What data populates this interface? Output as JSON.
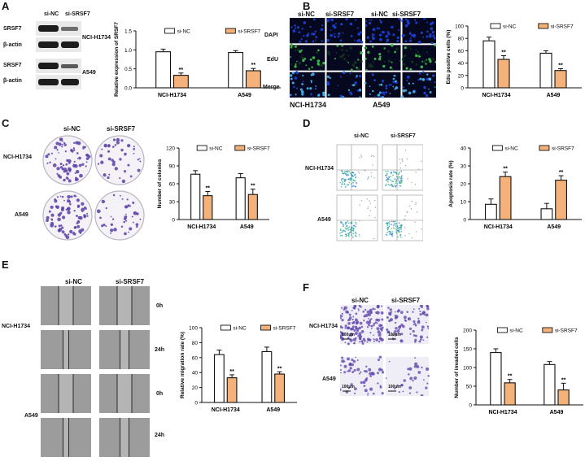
{
  "figure": {
    "colors": {
      "sirna_nc": "#ffffff",
      "si_srsf7": "#f4b27a",
      "outline": "#111111",
      "crystal_violet": "#5a3fa8",
      "dapi_blue": "#1a3cc8",
      "edu_green": "#39b54a",
      "scratch_gray": "#9c9c9c"
    },
    "panels": {
      "A": {
        "label": "A",
        "blot_cols": [
          "si-NC",
          "si-SRSF7"
        ],
        "blot_rows": [
          "SRSF7",
          "β-actin",
          "SRSF7",
          "β-actin"
        ],
        "cell_lines": [
          "NCI-H1734",
          "A549"
        ]
      },
      "B": {
        "label": "B",
        "cols": [
          "si-NC",
          "si-SRSF7",
          "si-NC",
          "si-SRSF7"
        ],
        "rows": [
          "DAPI",
          "EdU",
          "Merge"
        ],
        "cell_lines": [
          "NCI-H1734",
          "A549"
        ]
      },
      "C": {
        "label": "C",
        "cols": [
          "si-NC",
          "si-SRSF7"
        ],
        "cell_lines": [
          "NCI-H1734",
          "A549"
        ]
      },
      "D": {
        "label": "D",
        "cols": [
          "si-NC",
          "si-SRSF7"
        ],
        "cell_lines": [
          "NCI-H1734",
          "A549"
        ]
      },
      "E": {
        "label": "E",
        "cols": [
          "si-NC",
          "si-SRSF7"
        ],
        "times": [
          "0h",
          "24h",
          "0h",
          "24h"
        ],
        "cell_lines": [
          "NCI-H1734",
          "A549"
        ]
      },
      "F": {
        "label": "F",
        "cols": [
          "si-NC",
          "si-SRSF7"
        ],
        "cell_lines": [
          "NCI-H1734",
          "A549"
        ],
        "scale": "100μm"
      }
    }
  },
  "chart_data": [
    {
      "id": "A",
      "type": "bar",
      "categories": [
        "NCI-H1734",
        "A549"
      ],
      "series": [
        {
          "name": "si-NC",
          "values": [
            0.95,
            0.93
          ],
          "errors": [
            0.07,
            0.05
          ]
        },
        {
          "name": "si-SRSF7",
          "values": [
            0.33,
            0.45
          ],
          "errors": [
            0.06,
            0.06
          ]
        }
      ],
      "ylabel": "Relative expression of SRSF7",
      "ylim": [
        0,
        1.5
      ],
      "yticks": [
        0.0,
        0.5,
        1.0,
        1.5
      ],
      "ytick_labels": [
        "0.0",
        "0.5",
        "1.0",
        "1.5"
      ],
      "significance": [
        [
          "",
          "**"
        ],
        [
          "",
          "**"
        ]
      ]
    },
    {
      "id": "B",
      "type": "bar",
      "categories": [
        "NCI-H1734",
        "A549"
      ],
      "series": [
        {
          "name": "si-NC",
          "values": [
            76,
            56
          ],
          "errors": [
            6,
            4
          ]
        },
        {
          "name": "si-SRSF7",
          "values": [
            46,
            28
          ],
          "errors": [
            6,
            3
          ]
        }
      ],
      "ylabel": "Edu positive cells (%)",
      "ylim": [
        0,
        100
      ],
      "yticks": [
        0,
        20,
        40,
        60,
        80,
        100
      ],
      "ytick_labels": [
        "0",
        "20",
        "40",
        "60",
        "80",
        "100"
      ],
      "significance": [
        [
          "",
          "**"
        ],
        [
          "",
          "**"
        ]
      ]
    },
    {
      "id": "C",
      "type": "bar",
      "categories": [
        "NCI-H1734",
        "A549"
      ],
      "series": [
        {
          "name": "si-NC",
          "values": [
            76,
            70
          ],
          "errors": [
            6,
            7
          ]
        },
        {
          "name": "si-SRSF7",
          "values": [
            40,
            42
          ],
          "errors": [
            7,
            9
          ]
        }
      ],
      "ylabel": "Number of colonies",
      "ylim": [
        0,
        120
      ],
      "yticks": [
        0,
        30,
        60,
        90,
        120
      ],
      "ytick_labels": [
        "0",
        "30",
        "60",
        "90",
        "120"
      ],
      "significance": [
        [
          "",
          "**"
        ],
        [
          "",
          "**"
        ]
      ]
    },
    {
      "id": "D",
      "type": "bar",
      "categories": [
        "NCI-H1734",
        "A549"
      ],
      "series": [
        {
          "name": "si-NC",
          "values": [
            8.5,
            6
          ],
          "errors": [
            3,
            3
          ]
        },
        {
          "name": "si-SRSF7",
          "values": [
            24,
            22
          ],
          "errors": [
            2.5,
            2.5
          ]
        }
      ],
      "ylabel": "Apoptosis rate (%)",
      "ylim": [
        0,
        40
      ],
      "yticks": [
        0,
        10,
        20,
        30,
        40
      ],
      "ytick_labels": [
        "0",
        "10",
        "20",
        "30",
        "40"
      ],
      "significance": [
        [
          "",
          "**"
        ],
        [
          "",
          "**"
        ]
      ]
    },
    {
      "id": "E",
      "type": "bar",
      "categories": [
        "NCI-H1734",
        "A549"
      ],
      "series": [
        {
          "name": "si-NC",
          "values": [
            64,
            68
          ],
          "errors": [
            6,
            6
          ]
        },
        {
          "name": "si-SRSF7",
          "values": [
            33,
            38
          ],
          "errors": [
            4,
            3
          ]
        }
      ],
      "ylabel": "Relative migration rate (%)",
      "ylim": [
        0,
        100
      ],
      "yticks": [
        0,
        20,
        40,
        60,
        80,
        100
      ],
      "ytick_labels": [
        "0",
        "20",
        "40",
        "60",
        "80",
        "100"
      ],
      "significance": [
        [
          "",
          "**"
        ],
        [
          "",
          "**"
        ]
      ]
    },
    {
      "id": "F",
      "type": "bar",
      "categories": [
        "NCI-H1734",
        "A549"
      ],
      "series": [
        {
          "name": "si-NC",
          "values": [
            140,
            108
          ],
          "errors": [
            10,
            8
          ]
        },
        {
          "name": "si-SRSF7",
          "values": [
            59,
            40
          ],
          "errors": [
            9,
            18
          ]
        }
      ],
      "ylabel": "Number of invaded cells",
      "ylim": [
        0,
        200
      ],
      "yticks": [
        0,
        50,
        100,
        150,
        200
      ],
      "ytick_labels": [
        "0",
        "50",
        "100",
        "150",
        "200"
      ],
      "significance": [
        [
          "",
          "**"
        ],
        [
          "",
          "**"
        ]
      ]
    }
  ]
}
